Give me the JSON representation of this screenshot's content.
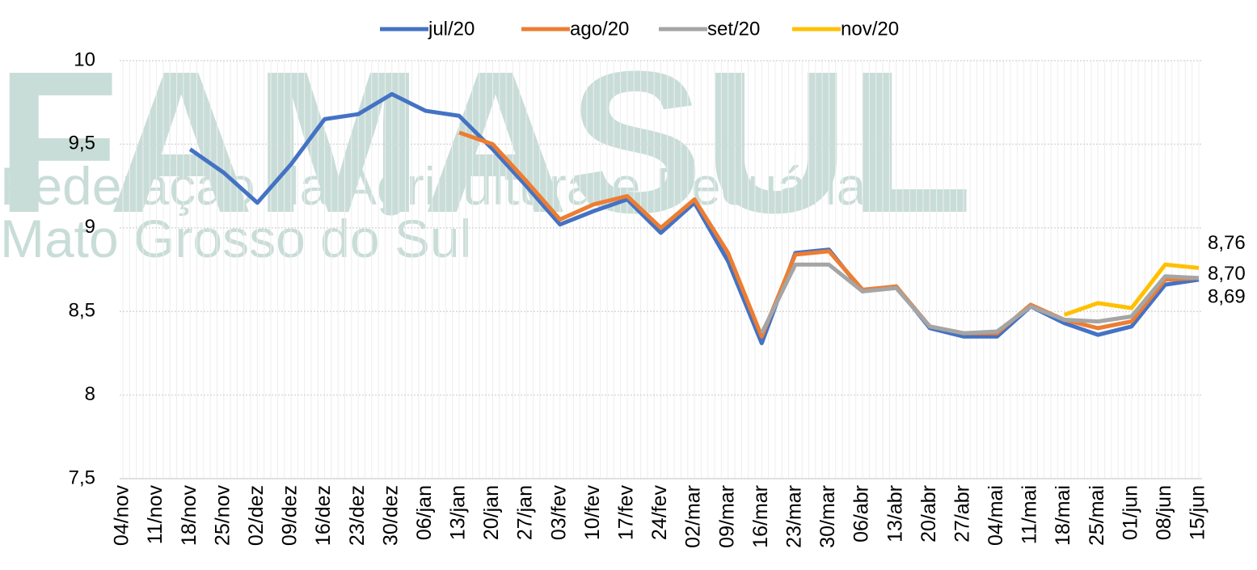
{
  "chart_data": {
    "type": "line",
    "watermark": {
      "title": "FAMASUL",
      "line1": "Federação da Agricultura e Pecuária",
      "line2": "Mato Grosso do Sul"
    },
    "categories": [
      "04/nov",
      "11/nov",
      "18/nov",
      "25/nov",
      "02/dez",
      "09/dez",
      "16/dez",
      "23/dez",
      "30/dez",
      "06/jan",
      "13/jan",
      "20/jan",
      "27/jan",
      "03/fev",
      "10/fev",
      "17/fev",
      "24/fev",
      "02/mar",
      "09/mar",
      "16/mar",
      "23/mar",
      "30/mar",
      "06/abr",
      "13/abr",
      "20/abr",
      "27/abr",
      "04/mai",
      "11/mai",
      "18/mai",
      "25/mai",
      "01/jun",
      "08/jun",
      "15/jun"
    ],
    "series": [
      {
        "name": "jul/20",
        "color": "#4472c4",
        "values": [
          null,
          null,
          9.47,
          9.33,
          9.15,
          9.38,
          9.65,
          9.68,
          9.8,
          9.7,
          9.67,
          9.47,
          9.25,
          9.02,
          9.1,
          9.17,
          8.97,
          9.15,
          8.8,
          8.31,
          8.85,
          8.87,
          8.62,
          8.65,
          8.4,
          8.35,
          8.35,
          8.53,
          8.43,
          8.36,
          8.41,
          8.66,
          8.69
        ],
        "value_labels": [
          null,
          null,
          null,
          null,
          null,
          null,
          null,
          null,
          null,
          null,
          null,
          null,
          null,
          null,
          null,
          null,
          null,
          null,
          null,
          null,
          null,
          null,
          null,
          null,
          null,
          null,
          null,
          null,
          null,
          null,
          null,
          null,
          "8,69"
        ]
      },
      {
        "name": "ago/20",
        "color": "#ed7d31",
        "values": [
          null,
          null,
          null,
          null,
          null,
          null,
          null,
          null,
          null,
          null,
          9.57,
          9.5,
          9.28,
          9.05,
          9.14,
          9.19,
          9.0,
          9.17,
          8.85,
          8.35,
          8.84,
          8.86,
          8.63,
          8.65,
          8.41,
          8.37,
          8.37,
          8.54,
          8.45,
          8.4,
          8.44,
          8.69,
          8.7
        ]
      },
      {
        "name": "set/20",
        "color": "#a5a5a5",
        "values": [
          null,
          null,
          null,
          null,
          null,
          null,
          null,
          null,
          null,
          null,
          null,
          null,
          null,
          null,
          null,
          null,
          null,
          null,
          null,
          8.37,
          8.78,
          8.78,
          8.62,
          8.64,
          8.41,
          8.37,
          8.38,
          8.53,
          8.45,
          8.44,
          8.47,
          8.71,
          8.7
        ],
        "value_labels": [
          null,
          null,
          null,
          null,
          null,
          null,
          null,
          null,
          null,
          null,
          null,
          null,
          null,
          null,
          null,
          null,
          null,
          null,
          null,
          null,
          null,
          null,
          null,
          null,
          null,
          null,
          null,
          null,
          null,
          null,
          null,
          null,
          "8,70"
        ]
      },
      {
        "name": "nov/20",
        "color": "#ffc000",
        "values": [
          null,
          null,
          null,
          null,
          null,
          null,
          null,
          null,
          null,
          null,
          null,
          null,
          null,
          null,
          null,
          null,
          null,
          null,
          null,
          null,
          null,
          null,
          null,
          null,
          null,
          null,
          null,
          null,
          8.48,
          8.55,
          8.52,
          8.78,
          8.76
        ],
        "value_labels": [
          null,
          null,
          null,
          null,
          null,
          null,
          null,
          null,
          null,
          null,
          null,
          null,
          null,
          null,
          null,
          null,
          null,
          null,
          null,
          null,
          null,
          null,
          null,
          null,
          null,
          null,
          null,
          null,
          null,
          null,
          null,
          null,
          "8,76"
        ]
      }
    ],
    "ylim": [
      7.5,
      10
    ],
    "yticks": [
      {
        "value": 7.5,
        "label": "7,5"
      },
      8,
      {
        "value": 8.5,
        "label": "8,5"
      },
      9,
      {
        "value": 9.5,
        "label": "9,5"
      },
      10
    ],
    "grid": true,
    "legend": "top"
  }
}
